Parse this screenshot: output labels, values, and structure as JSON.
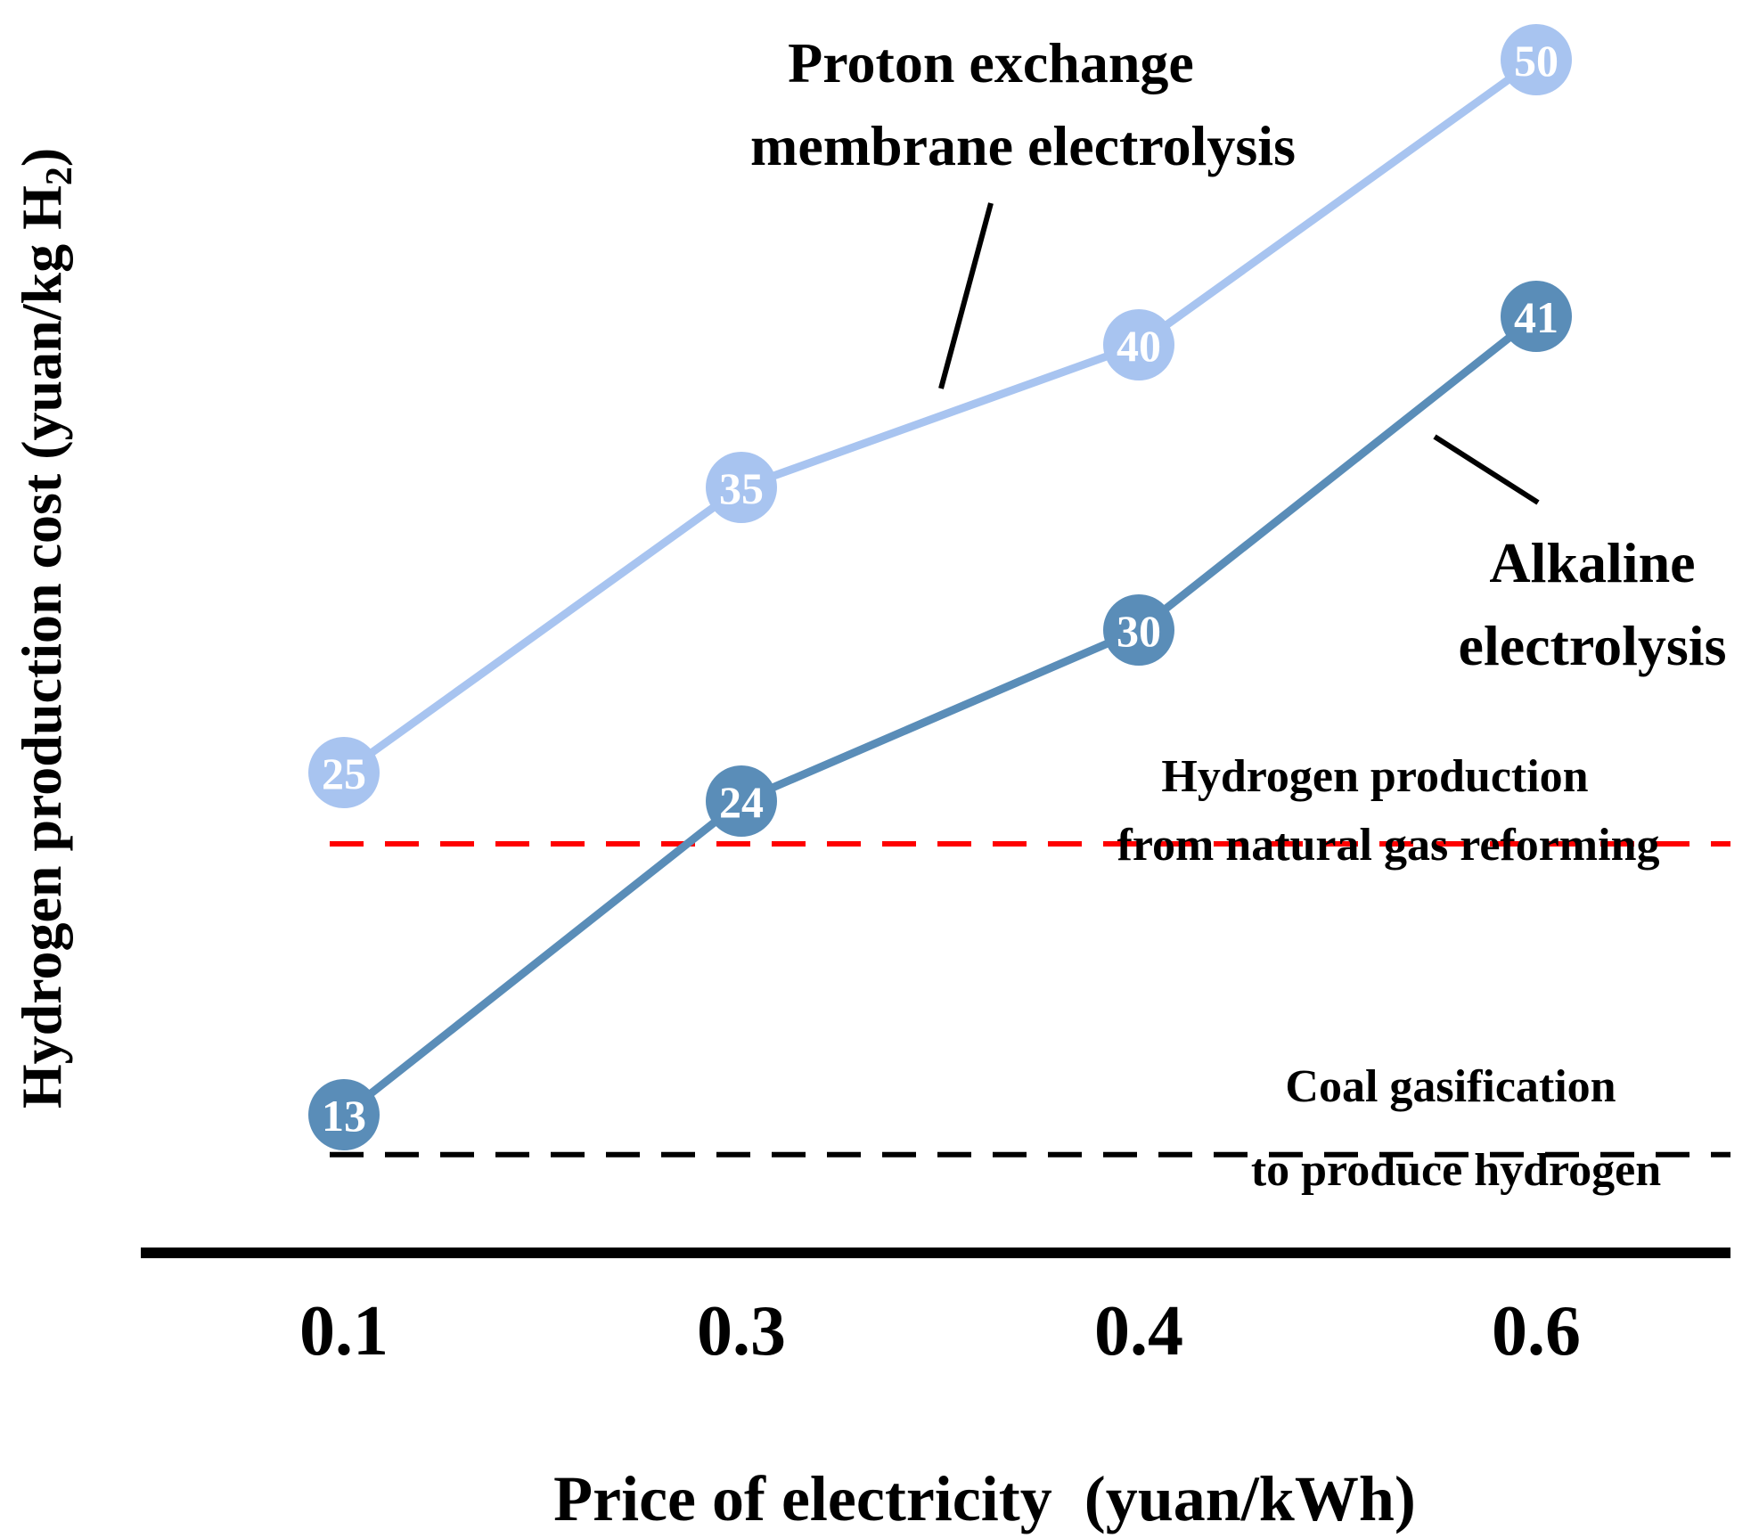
{
  "chart_data": {
    "type": "line",
    "categories": [
      "0.1",
      "0.3",
      "0.4",
      "0.6"
    ],
    "xlabel": "Price of electricity  (yuan/kWh)",
    "ylabel": "Hydrogen production cost (yuan/kg H2)",
    "ylabel_main": "Hydrogen production cost (yuan/kg H",
    "ylabel_sub": "2",
    "ylabel_close": ")",
    "ylim": [
      9,
      52
    ],
    "series": [
      {
        "name": "Proton exchange membrane electrolysis",
        "label_lines": [
          "Proton exchange",
          "membrane electrolysis"
        ],
        "color": "#a8c4f0",
        "values": [
          25,
          35,
          40,
          50
        ]
      },
      {
        "name": "Alkaline electrolysis",
        "label_lines": [
          "Alkaline",
          "electrolysis"
        ],
        "color": "#5a8db8",
        "values": [
          13,
          24,
          30,
          41
        ]
      }
    ],
    "reference_lines": [
      {
        "name": "Hydrogen production from natural gas reforming",
        "label_lines": [
          "Hydrogen production",
          "from natural gas reforming"
        ],
        "value": 22.5,
        "color": "#ff0000",
        "style": "dashed"
      },
      {
        "name": "Coal gasification to produce hydrogen",
        "label_lines": [
          "Coal gasification",
          "to produce hydrogen"
        ],
        "value": 11.6,
        "color": "#000000",
        "style": "dashed"
      }
    ],
    "grid": false,
    "legend": "inline annotations"
  }
}
